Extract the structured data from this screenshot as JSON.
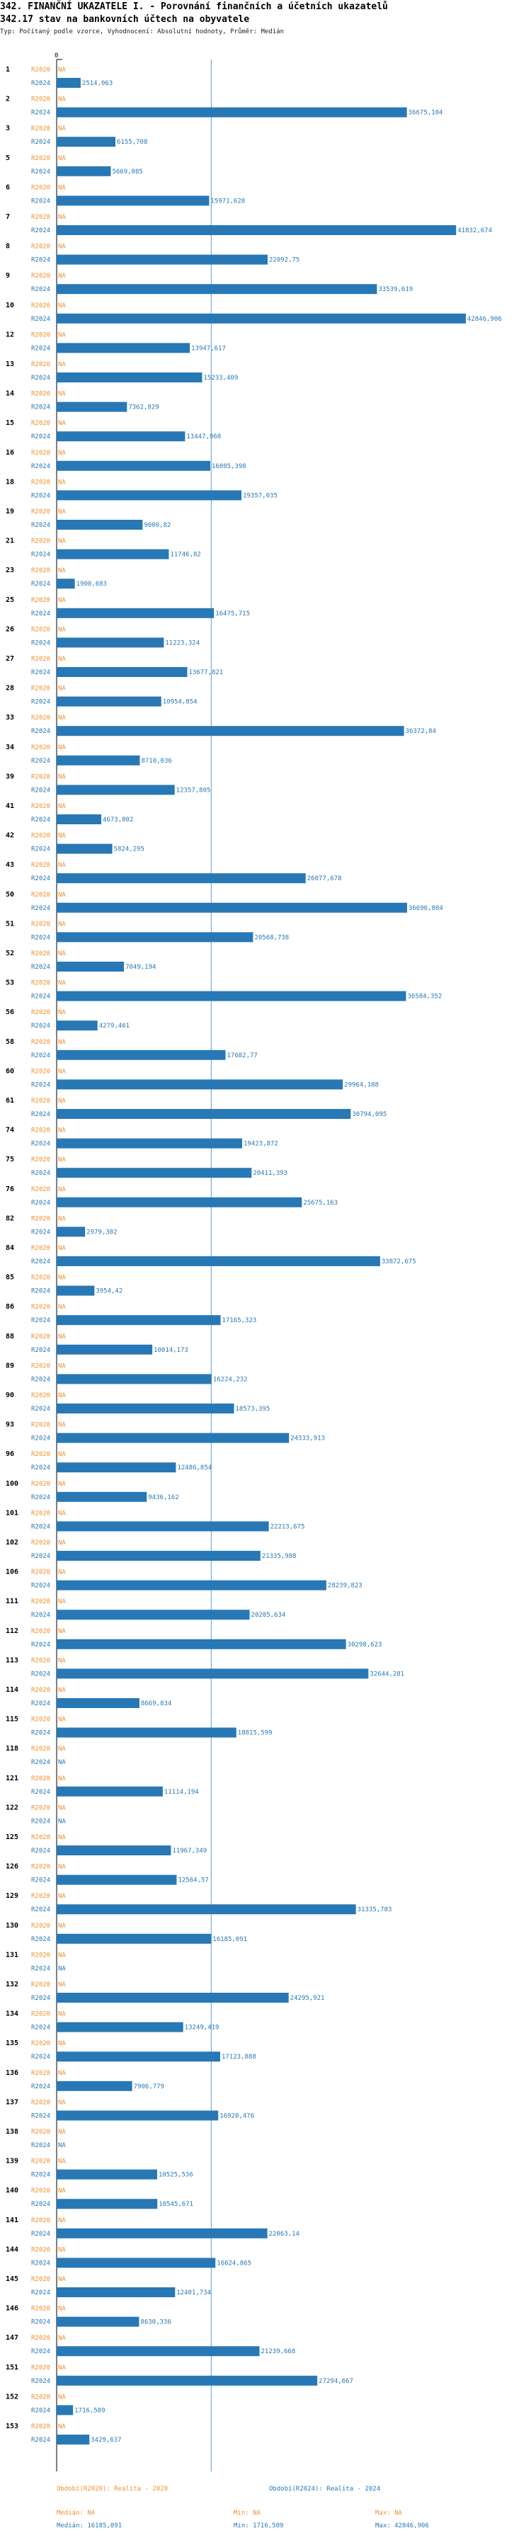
{
  "header": {
    "title": "342. FINANČNÍ UKAZATELE I. - Porovnání finančních a účetních ukazatelů",
    "subtitle": "342.17 stav na bankovních účtech na obyvatele",
    "description": "Typ: Počítaný podle vzorce, Vyhodnocení: Absolutní hodnoty, Průměr: Medián"
  },
  "colors": {
    "bar": "#2878b5",
    "label_2020": "#f28e2b",
    "label_2024": "#2878b5",
    "median_line": "#5b9bd5",
    "value_text": "#2878b5"
  },
  "chart_data": {
    "type": "bar",
    "orientation": "horizontal",
    "axis_zero_label": "0",
    "xlim": [
      0,
      43000
    ],
    "series_labels": {
      "r2020": "R2020",
      "r2024": "R2024"
    },
    "na_label": "NA",
    "median_2024": 16185.091,
    "groups": [
      {
        "id": "1",
        "r2020": null,
        "r2024": 2514.063,
        "r2024_label": "2514,063"
      },
      {
        "id": "2",
        "r2020": null,
        "r2024": 36675.104,
        "r2024_label": "36675,104"
      },
      {
        "id": "3",
        "r2020": null,
        "r2024": 6155.708,
        "r2024_label": "6155,708"
      },
      {
        "id": "5",
        "r2020": null,
        "r2024": 5669.085,
        "r2024_label": "5669,085"
      },
      {
        "id": "6",
        "r2020": null,
        "r2024": 15971.628,
        "r2024_label": "15971,628"
      },
      {
        "id": "7",
        "r2020": null,
        "r2024": 41832.674,
        "r2024_label": "41832,674"
      },
      {
        "id": "8",
        "r2020": null,
        "r2024": 22092.75,
        "r2024_label": "22092,75"
      },
      {
        "id": "9",
        "r2020": null,
        "r2024": 33539.619,
        "r2024_label": "33539,619"
      },
      {
        "id": "10",
        "r2020": null,
        "r2024": 42846.906,
        "r2024_label": "42846,906"
      },
      {
        "id": "12",
        "r2020": null,
        "r2024": 13947.617,
        "r2024_label": "13947,617"
      },
      {
        "id": "13",
        "r2020": null,
        "r2024": 15233.409,
        "r2024_label": "15233,409"
      },
      {
        "id": "14",
        "r2020": null,
        "r2024": 7362.829,
        "r2024_label": "7362,829"
      },
      {
        "id": "15",
        "r2020": null,
        "r2024": 13447.968,
        "r2024_label": "13447,968"
      },
      {
        "id": "16",
        "r2020": null,
        "r2024": 16085.398,
        "r2024_label": "16085,398"
      },
      {
        "id": "18",
        "r2020": null,
        "r2024": 19357.035,
        "r2024_label": "19357,035"
      },
      {
        "id": "19",
        "r2020": null,
        "r2024": 9000.82,
        "r2024_label": "9000,82"
      },
      {
        "id": "21",
        "r2020": null,
        "r2024": 11746.82,
        "r2024_label": "11746,82"
      },
      {
        "id": "23",
        "r2020": null,
        "r2024": 1900.683,
        "r2024_label": "1900,683"
      },
      {
        "id": "25",
        "r2020": null,
        "r2024": 16475.715,
        "r2024_label": "16475,715"
      },
      {
        "id": "26",
        "r2020": null,
        "r2024": 11223.324,
        "r2024_label": "11223,324"
      },
      {
        "id": "27",
        "r2020": null,
        "r2024": 13677.821,
        "r2024_label": "13677,821"
      },
      {
        "id": "28",
        "r2020": null,
        "r2024": 10954.854,
        "r2024_label": "10954,854"
      },
      {
        "id": "33",
        "r2020": null,
        "r2024": 36372.84,
        "r2024_label": "36372,84"
      },
      {
        "id": "34",
        "r2020": null,
        "r2024": 8710.036,
        "r2024_label": "8710,036"
      },
      {
        "id": "39",
        "r2020": null,
        "r2024": 12357.805,
        "r2024_label": "12357,805"
      },
      {
        "id": "41",
        "r2020": null,
        "r2024": 4673.802,
        "r2024_label": "4673,802"
      },
      {
        "id": "42",
        "r2020": null,
        "r2024": 5824.295,
        "r2024_label": "5824,295"
      },
      {
        "id": "43",
        "r2020": null,
        "r2024": 26077.678,
        "r2024_label": "26077,678"
      },
      {
        "id": "50",
        "r2020": null,
        "r2024": 36696.804,
        "r2024_label": "36696,804"
      },
      {
        "id": "51",
        "r2020": null,
        "r2024": 20568.738,
        "r2024_label": "20568,738"
      },
      {
        "id": "52",
        "r2020": null,
        "r2024": 7049.194,
        "r2024_label": "7049,194"
      },
      {
        "id": "53",
        "r2020": null,
        "r2024": 36584.352,
        "r2024_label": "36584,352"
      },
      {
        "id": "56",
        "r2020": null,
        "r2024": 4279.461,
        "r2024_label": "4279,461"
      },
      {
        "id": "58",
        "r2020": null,
        "r2024": 17682.77,
        "r2024_label": "17682,77"
      },
      {
        "id": "60",
        "r2020": null,
        "r2024": 29964.188,
        "r2024_label": "29964,188"
      },
      {
        "id": "61",
        "r2020": null,
        "r2024": 30794.095,
        "r2024_label": "30794,095"
      },
      {
        "id": "74",
        "r2020": null,
        "r2024": 19423.872,
        "r2024_label": "19423,872"
      },
      {
        "id": "75",
        "r2020": null,
        "r2024": 20411.393,
        "r2024_label": "20411,393"
      },
      {
        "id": "76",
        "r2020": null,
        "r2024": 25675.163,
        "r2024_label": "25675,163"
      },
      {
        "id": "82",
        "r2020": null,
        "r2024": 2979.302,
        "r2024_label": "2979,302"
      },
      {
        "id": "84",
        "r2020": null,
        "r2024": 33872.675,
        "r2024_label": "33872,675"
      },
      {
        "id": "85",
        "r2020": null,
        "r2024": 3954.42,
        "r2024_label": "3954,42"
      },
      {
        "id": "86",
        "r2020": null,
        "r2024": 17165.323,
        "r2024_label": "17165,323"
      },
      {
        "id": "88",
        "r2020": null,
        "r2024": 10014.173,
        "r2024_label": "10014,173"
      },
      {
        "id": "89",
        "r2020": null,
        "r2024": 16224.232,
        "r2024_label": "16224,232"
      },
      {
        "id": "90",
        "r2020": null,
        "r2024": 18573.395,
        "r2024_label": "18573,395"
      },
      {
        "id": "93",
        "r2020": null,
        "r2024": 24333.913,
        "r2024_label": "24333,913"
      },
      {
        "id": "96",
        "r2020": null,
        "r2024": 12486.854,
        "r2024_label": "12486,854"
      },
      {
        "id": "100",
        "r2020": null,
        "r2024": 9436.162,
        "r2024_label": "9436,162"
      },
      {
        "id": "101",
        "r2020": null,
        "r2024": 22213.675,
        "r2024_label": "22213,675"
      },
      {
        "id": "102",
        "r2020": null,
        "r2024": 21335.988,
        "r2024_label": "21335,988"
      },
      {
        "id": "106",
        "r2020": null,
        "r2024": 28239.823,
        "r2024_label": "28239,823"
      },
      {
        "id": "111",
        "r2020": null,
        "r2024": 20205.634,
        "r2024_label": "20205,634"
      },
      {
        "id": "112",
        "r2020": null,
        "r2024": 30298.623,
        "r2024_label": "30298,623"
      },
      {
        "id": "113",
        "r2020": null,
        "r2024": 32644.281,
        "r2024_label": "32644,281"
      },
      {
        "id": "114",
        "r2020": null,
        "r2024": 8669.834,
        "r2024_label": "8669,834"
      },
      {
        "id": "115",
        "r2020": null,
        "r2024": 18815.599,
        "r2024_label": "18815,599"
      },
      {
        "id": "118",
        "r2020": null,
        "r2024": null,
        "r2024_label": ""
      },
      {
        "id": "121",
        "r2020": null,
        "r2024": 11114.194,
        "r2024_label": "11114,194"
      },
      {
        "id": "122",
        "r2020": null,
        "r2024": null,
        "r2024_label": ""
      },
      {
        "id": "125",
        "r2020": null,
        "r2024": 11967.349,
        "r2024_label": "11967,349"
      },
      {
        "id": "126",
        "r2020": null,
        "r2024": 12564.57,
        "r2024_label": "12564,57"
      },
      {
        "id": "129",
        "r2020": null,
        "r2024": 31335.703,
        "r2024_label": "31335,703"
      },
      {
        "id": "130",
        "r2020": null,
        "r2024": 16185.091,
        "r2024_label": "16185,091"
      },
      {
        "id": "131",
        "r2020": null,
        "r2024": null,
        "r2024_label": ""
      },
      {
        "id": "132",
        "r2020": null,
        "r2024": 24295.921,
        "r2024_label": "24295,921"
      },
      {
        "id": "134",
        "r2020": null,
        "r2024": 13249.419,
        "r2024_label": "13249,419"
      },
      {
        "id": "135",
        "r2020": null,
        "r2024": 17123.888,
        "r2024_label": "17123,888"
      },
      {
        "id": "136",
        "r2020": null,
        "r2024": 7906.779,
        "r2024_label": "7906,779"
      },
      {
        "id": "137",
        "r2020": null,
        "r2024": 16920.476,
        "r2024_label": "16920,476"
      },
      {
        "id": "138",
        "r2020": null,
        "r2024": null,
        "r2024_label": ""
      },
      {
        "id": "139",
        "r2020": null,
        "r2024": 10525.536,
        "r2024_label": "10525,536"
      },
      {
        "id": "140",
        "r2020": null,
        "r2024": 10545.671,
        "r2024_label": "10545,671"
      },
      {
        "id": "141",
        "r2020": null,
        "r2024": 22063.14,
        "r2024_label": "22063,14"
      },
      {
        "id": "144",
        "r2020": null,
        "r2024": 16624.865,
        "r2024_label": "16624,865"
      },
      {
        "id": "145",
        "r2020": null,
        "r2024": 12401.734,
        "r2024_label": "12401,734"
      },
      {
        "id": "146",
        "r2020": null,
        "r2024": 8630.336,
        "r2024_label": "8630,336"
      },
      {
        "id": "147",
        "r2020": null,
        "r2024": 21239.668,
        "r2024_label": "21239,668"
      },
      {
        "id": "151",
        "r2020": null,
        "r2024": 27294.667,
        "r2024_label": "27294,667"
      },
      {
        "id": "152",
        "r2020": null,
        "r2024": 1716.509,
        "r2024_label": "1716,509"
      },
      {
        "id": "153",
        "r2020": null,
        "r2024": 3429.637,
        "r2024_label": "3429,637"
      }
    ]
  },
  "legend": {
    "left_header": "Období(R2020): Realita - 2020",
    "right_header": "Období(R2024): Realita - 2024",
    "left_median": "Medián: NA",
    "left_min": "Min: NA",
    "left_max": "Max: NA",
    "right_median": "Medián: 16185,091",
    "right_min": "Min: 1716,509",
    "right_max": "Max: 42846,906"
  }
}
